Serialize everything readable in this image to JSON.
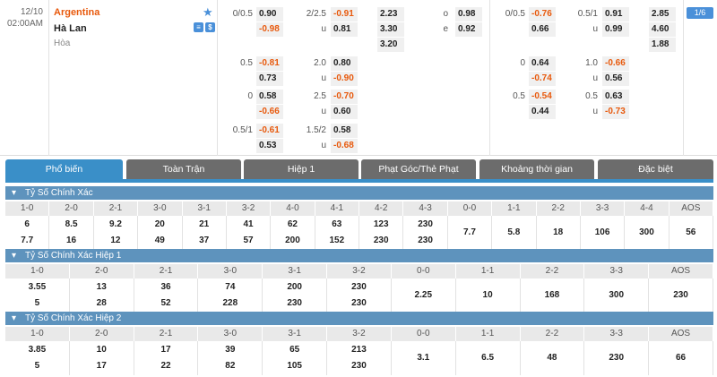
{
  "match": {
    "date": "12/10",
    "time": "02:00AM",
    "home": "Argentina",
    "away": "Hà Lan",
    "draw": "Hòa",
    "badge": "1/6"
  },
  "odds_left": {
    "r1": {
      "hcap": "0/0.5",
      "h1": "0.90",
      "h2": "-0.98",
      "ou": "2/2.5",
      "o1": "-0.91",
      "u": "u",
      "o2": "0.81",
      "x1": "2.23",
      "x2": "3.30",
      "x3": "3.20",
      "oe_o": "o",
      "oe1": "0.98",
      "oe_e": "e",
      "oe2": "0.92"
    },
    "r2": {
      "hcap": "0.5",
      "h1": "-0.81",
      "h2": "0.73",
      "ou": "2.0",
      "o1": "0.80",
      "u": "u",
      "o2": "-0.90"
    },
    "r3": {
      "hcap": "0",
      "h1": "0.58",
      "h2": "-0.66",
      "ou": "2.5",
      "o1": "-0.70",
      "u": "u",
      "o2": "0.60"
    },
    "r4": {
      "hcap": "0.5/1",
      "h1": "-0.61",
      "h2": "0.53",
      "ou": "1.5/2",
      "o1": "0.58",
      "u": "u",
      "o2": "-0.68"
    }
  },
  "odds_right": {
    "r1": {
      "hcap": "0/0.5",
      "h1": "-0.76",
      "h2": "0.66",
      "ou": "0.5/1",
      "o1": "0.91",
      "u": "u",
      "o2": "0.99",
      "x1": "2.85",
      "x2": "4.60",
      "x3": "1.88"
    },
    "r2": {
      "hcap": "0",
      "h1": "0.64",
      "h2": "-0.74",
      "ou": "1.0",
      "o1": "-0.66",
      "u": "u",
      "o2": "0.56"
    },
    "r3": {
      "hcap": "0.5",
      "h1": "-0.54",
      "h2": "0.44",
      "ou": "0.5",
      "o1": "0.63",
      "u": "u",
      "o2": "-0.73"
    }
  },
  "tabs": [
    "Phổ biến",
    "Toàn Trận",
    "Hiệp 1",
    "Phạt Góc/Thẻ Phạt",
    "Khoảng thời gian",
    "Đặc biệt"
  ],
  "sections": [
    {
      "title": "Tỷ Số Chính Xác",
      "headers": [
        "1-0",
        "2-0",
        "2-1",
        "3-0",
        "3-1",
        "3-2",
        "4-0",
        "4-1",
        "4-2",
        "4-3",
        "0-0",
        "1-1",
        "2-2",
        "3-3",
        "4-4",
        "AOS"
      ],
      "home": [
        "6",
        "8.5",
        "9.2",
        "20",
        "21",
        "41",
        "62",
        "63",
        "123",
        "230"
      ],
      "away": [
        "7.7",
        "16",
        "12",
        "49",
        "37",
        "57",
        "200",
        "152",
        "230",
        "230"
      ],
      "single": [
        "7.7",
        "5.8",
        "18",
        "106",
        "300",
        "56"
      ]
    },
    {
      "title": "Tỷ Số Chính Xác Hiệp 1",
      "headers": [
        "1-0",
        "2-0",
        "2-1",
        "3-0",
        "3-1",
        "3-2",
        "0-0",
        "1-1",
        "2-2",
        "3-3",
        "AOS"
      ],
      "home": [
        "3.55",
        "13",
        "36",
        "74",
        "200",
        "230"
      ],
      "away": [
        "5",
        "28",
        "52",
        "228",
        "230",
        "230"
      ],
      "single": [
        "2.25",
        "10",
        "168",
        "300",
        "230"
      ]
    },
    {
      "title": "Tỷ Số Chính Xác Hiệp 2",
      "headers": [
        "1-0",
        "2-0",
        "2-1",
        "3-0",
        "3-1",
        "3-2",
        "0-0",
        "1-1",
        "2-2",
        "3-3",
        "AOS"
      ],
      "home": [
        "3.85",
        "10",
        "17",
        "39",
        "65",
        "213"
      ],
      "away": [
        "5",
        "17",
        "22",
        "82",
        "105",
        "230"
      ],
      "single": [
        "3.1",
        "6.5",
        "48",
        "230",
        "66"
      ]
    }
  ]
}
